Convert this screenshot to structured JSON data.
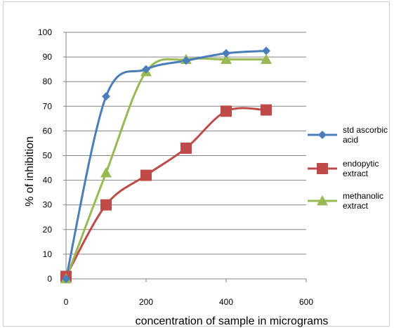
{
  "chart_data": {
    "type": "line",
    "title": "",
    "xlabel": "concentration of sample in micrograms",
    "ylabel": "% of inhibition",
    "xlim": [
      0,
      600
    ],
    "ylim": [
      0,
      100
    ],
    "x_ticks": [
      0,
      200,
      400,
      600
    ],
    "y_ticks": [
      0,
      10,
      20,
      30,
      40,
      50,
      60,
      70,
      80,
      90,
      100
    ],
    "grid": "horizontal",
    "legend_position": "right",
    "series": [
      {
        "name": "std ascorbic acid",
        "name_lines": [
          "std ascorbic",
          "acid"
        ],
        "color": "#4a7ebb",
        "marker": "diamond",
        "x": [
          0,
          100,
          200,
          300,
          400,
          500
        ],
        "y": [
          0,
          74,
          85,
          88.5,
          91.5,
          92.5
        ]
      },
      {
        "name": "endopytic extract",
        "name_lines": [
          "endopytic",
          "extract"
        ],
        "color": "#be4b48",
        "marker": "square",
        "x": [
          0,
          100,
          200,
          300,
          400,
          500
        ],
        "y": [
          1,
          30,
          42,
          53,
          68,
          68.5
        ]
      },
      {
        "name": "methanolic extract",
        "name_lines": [
          "methanolic",
          "extract"
        ],
        "color": "#98b954",
        "marker": "triangle",
        "x": [
          0,
          100,
          200,
          300,
          400,
          500
        ],
        "y": [
          0,
          43,
          84,
          89,
          89,
          89
        ]
      }
    ]
  }
}
